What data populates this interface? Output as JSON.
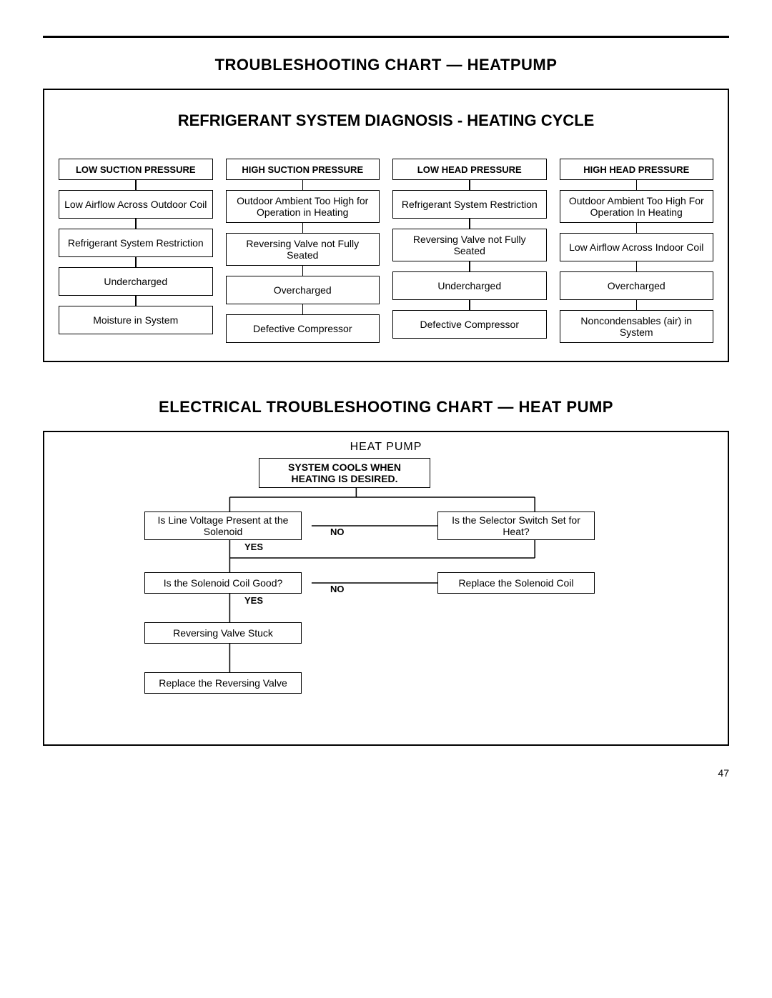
{
  "top_title": "TROUBLESHOOTING CHART — HEATPUMP",
  "sub_title": "REFRIGERANT SYSTEM DIAGNOSIS - HEATING CYCLE",
  "columns": [
    {
      "header": "LOW SUCTION PRESSURE",
      "items": [
        "Low Airflow Across Outdoor Coil",
        "Refrigerant System Restriction",
        "Undercharged",
        "Moisture in System"
      ]
    },
    {
      "header": "HIGH SUCTION PRESSURE",
      "items": [
        "Outdoor Ambient Too High for Operation in Heating",
        "Reversing Valve not Fully Seated",
        "Overcharged",
        "Defective Compressor"
      ]
    },
    {
      "header": "LOW HEAD PRESSURE",
      "items": [
        "Refrigerant System Restriction",
        "Reversing Valve not Fully Seated",
        "Undercharged",
        "Defective Compressor"
      ]
    },
    {
      "header": "HIGH HEAD PRESSURE",
      "items": [
        "Outdoor Ambient Too High For Operation In Heating",
        "Low Airflow Across Indoor Coil",
        "Overcharged",
        "Noncondensables (air) in System"
      ]
    }
  ],
  "second_title": "ELECTRICAL TROUBLESHOOTING CHART — HEAT PUMP",
  "hp_label": "HEAT  PUMP",
  "flow": {
    "start": "SYSTEM COOLS WHEN HEATING IS DESIRED.",
    "q1": "Is Line Voltage Present at the Solenoid",
    "q1_no_target": "Is the Selector Switch Set for Heat?",
    "q2": "Is the Solenoid Coil Good?",
    "q2_no_target": "Replace the Solenoid Coil",
    "q3": "Reversing Valve Stuck",
    "q4": "Replace the Reversing Valve",
    "yes": "YES",
    "no": "NO"
  },
  "page_number": "47",
  "colors": {
    "stroke": "#000000",
    "bg": "#ffffff"
  }
}
